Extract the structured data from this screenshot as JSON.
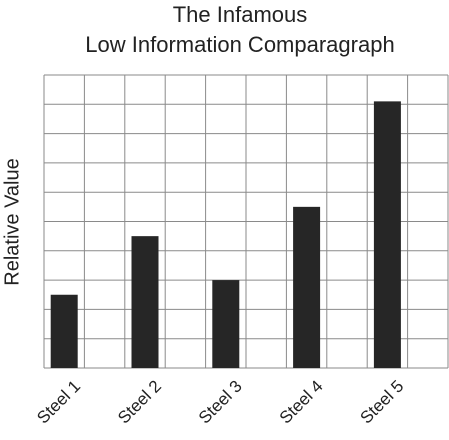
{
  "chart_data": {
    "type": "bar",
    "title": [
      "The Infamous",
      "Low Information Comparagraph"
    ],
    "y_label": "Relative Value",
    "categories": [
      "Steel 1",
      "Steel 2",
      "Steel 3",
      "Steel 4",
      "Steel 5"
    ],
    "values": [
      2.5,
      4.5,
      3,
      5.5,
      9.1
    ],
    "color": "#262626",
    "ylim": [
      0,
      10
    ],
    "yticks": [
      0,
      1,
      2,
      3,
      4,
      5,
      6,
      7,
      8,
      9,
      10
    ],
    "grid": true
  }
}
